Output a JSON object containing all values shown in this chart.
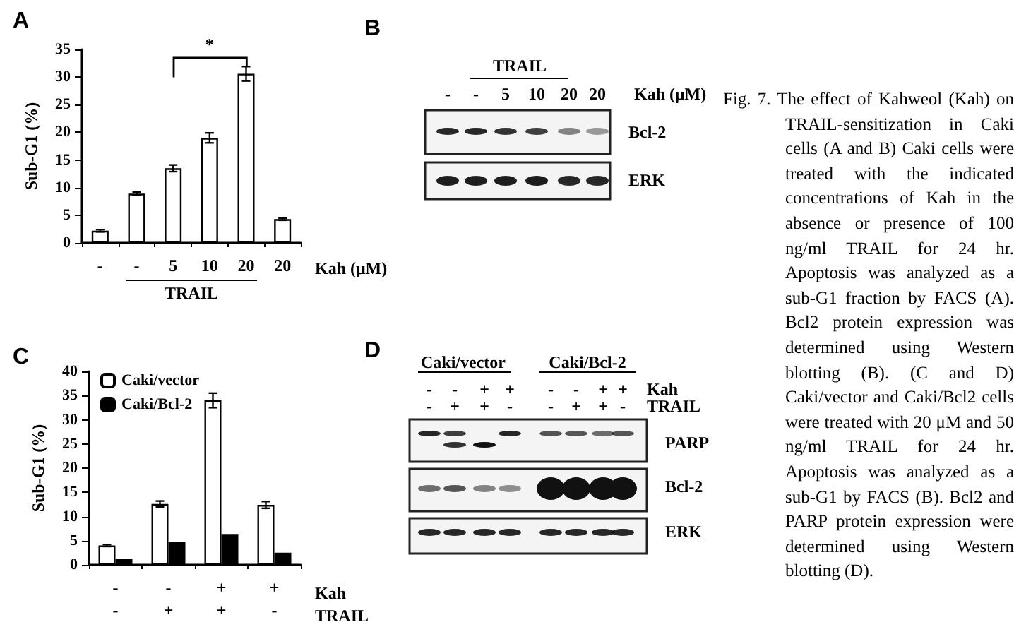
{
  "chart_data": [
    {
      "type": "bar",
      "title": "A",
      "ylabel": "Sub-G1 (%)",
      "xlabel": "Kah (μM)",
      "categories": [
        "-",
        "-",
        "5",
        "10",
        "20",
        "20"
      ],
      "values": [
        2.2,
        8.9,
        13.5,
        19.0,
        30.6,
        4.3
      ],
      "errors": [
        0.2,
        0.3,
        0.6,
        0.9,
        1.3,
        0.2
      ],
      "color": "#ffffff",
      "ylim": [
        0,
        35
      ],
      "yticks": [
        0,
        5,
        10,
        15,
        20,
        25,
        30,
        35
      ],
      "annotations": [
        "*",
        "TRAIL"
      ]
    },
    {
      "type": "other",
      "title": "B",
      "annotations": [
        "TRAIL",
        "-",
        "-",
        "5",
        "10",
        "20",
        "20",
        "Kah (μM)",
        "Bcl-2",
        "ERK"
      ]
    },
    {
      "type": "bar",
      "title": "C",
      "ylabel": "Sub-G1 (%)",
      "xlabel": "Kah\nTRAIL",
      "categories": [
        "-\n-",
        "-\n+",
        "+\n+",
        "+\n-"
      ],
      "legend": "top left",
      "ylim": [
        0,
        40
      ],
      "yticks": [
        0,
        5,
        10,
        15,
        20,
        25,
        30,
        35,
        40
      ],
      "series": [
        {
          "name": "Caki/vector",
          "color": "#ffffff",
          "values": [
            4.0,
            12.6,
            34.0,
            12.4
          ],
          "errors": [
            0.2,
            0.6,
            1.5,
            0.7
          ]
        },
        {
          "name": "Caki/Bcl-2",
          "color": "#000000",
          "values": [
            1.3,
            4.7,
            6.4,
            2.5
          ]
        }
      ]
    },
    {
      "type": "other",
      "title": "D",
      "annotations": [
        "Caki/vector",
        "Caki/Bcl-2",
        "-",
        "-",
        "+",
        "+",
        "-",
        "-",
        "+",
        "+",
        "Kah",
        "-",
        "+",
        "+",
        "-",
        "-",
        "+",
        "+",
        "-",
        "TRAIL",
        "PARP",
        "Bcl-2",
        "ERK"
      ]
    },
    {
      "type": "other",
      "annotations": [
        "Fig. 7. The effect of Kahweol (Kah) on TRAIL-sensitization in Caki cells (A and B) Caki cells were treated with the indicated concentrations of Kah in the absence or presence of 100 ng/ml TRAIL for 24 hr. Apoptosis was analyzed as a sub-G1 fraction by FACS (A). Bcl2 protein expression was determined using Western blotting (B). (C and D) Caki/vector and Caki/Bcl2 cells were treated with 20 μM and 50 ng/ml TRAIL for 24 hr. Apoptosis was analyzed as a sub-G1 by FACS (B). Bcl2 and PARP protein expression were determined using Western blotting (D)."
      ]
    }
  ]
}
